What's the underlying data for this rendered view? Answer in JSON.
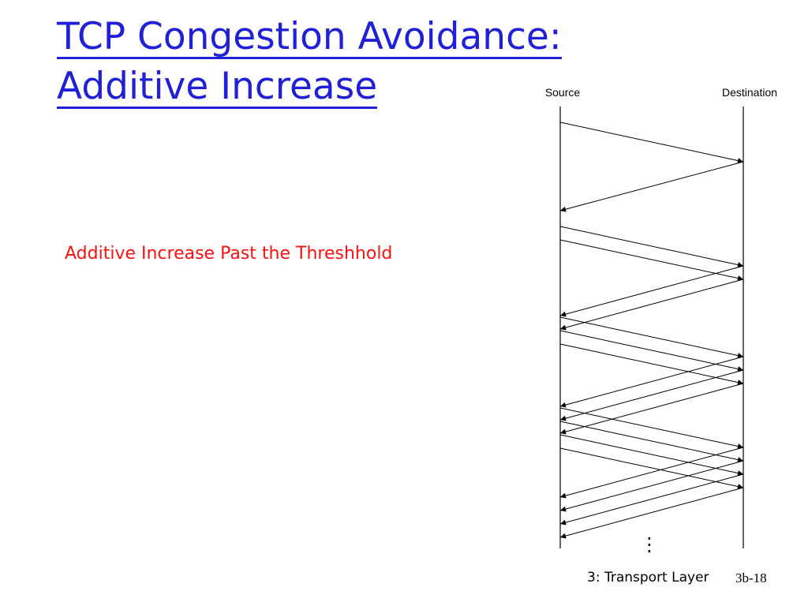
{
  "slide": {
    "title_line1": "TCP Congestion Avoidance:",
    "title_line2": "Additive Increase",
    "annotation": "Additive Increase Past the Threshhold",
    "accent_color": "#2020d8",
    "annotation_color": "#ff1010"
  },
  "diagram": {
    "source_label": "Source",
    "destination_label": "Destination",
    "continuation_marker": "⋮",
    "rounds": [
      {
        "segments_sent": 1
      },
      {
        "segments_sent": 2
      },
      {
        "segments_sent": 3
      },
      {
        "segments_sent": 4
      }
    ]
  },
  "footer": {
    "section": "3: Transport Layer",
    "page": "3b-18"
  }
}
